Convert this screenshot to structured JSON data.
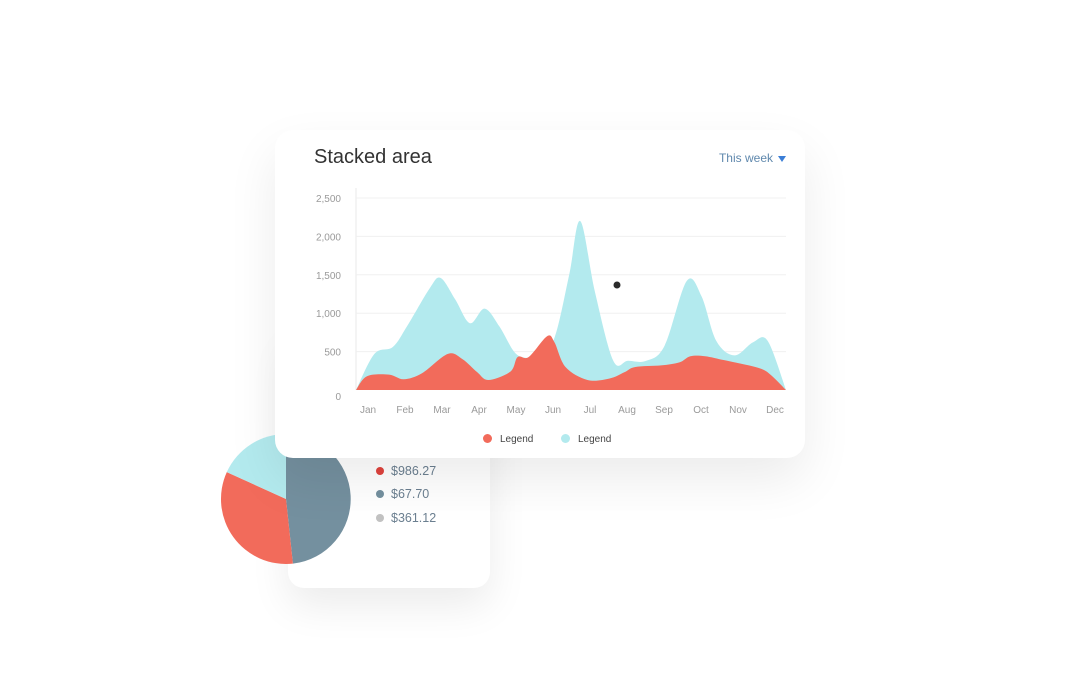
{
  "chart_data": [
    {
      "type": "area",
      "title": "Stacked area",
      "period": "This week",
      "categories": [
        "Jan",
        "Feb",
        "Mar",
        "Apr",
        "May",
        "Jun",
        "Jul",
        "Aug",
        "Sep",
        "Oct",
        "Nov",
        "Dec"
      ],
      "y_ticks": [
        "2,500",
        "2,000",
        "1,500",
        "1,000",
        "500",
        "0"
      ],
      "ylim": [
        0,
        2500
      ],
      "grid": true,
      "legend_position": "bottom-center",
      "series": [
        {
          "name": "Legend",
          "color": "#f26b5b",
          "x": [
            0,
            0.3,
            0.9,
            1.3,
            1.8,
            2.5,
            2.9,
            3.3,
            3.6,
            4.2,
            4.4,
            4.7,
            5.2,
            5.4,
            5.7,
            6.3,
            6.9,
            7.3,
            7.6,
            8.3,
            8.8,
            9.1,
            9.5,
            10,
            10.4,
            11,
            11.3,
            11.7
          ],
          "values": [
            0,
            180,
            200,
            140,
            220,
            470,
            400,
            230,
            130,
            240,
            430,
            430,
            700,
            620,
            300,
            130,
            150,
            230,
            300,
            320,
            360,
            440,
            440,
            390,
            350,
            280,
            190,
            0
          ]
        },
        {
          "name": "Legend",
          "color": "#b3eaee",
          "x": [
            0,
            0.5,
            1,
            1.4,
            2,
            2.3,
            2.7,
            3.1,
            3.5,
            3.9,
            4.3,
            4.6,
            5,
            5.4,
            5.8,
            6.1,
            6.5,
            7,
            7.4,
            7.9,
            8.4,
            9,
            9.4,
            9.8,
            10.3,
            10.8,
            11.2,
            11.7
          ],
          "values": [
            0,
            470,
            560,
            840,
            1320,
            1460,
            1180,
            870,
            1060,
            830,
            500,
            420,
            450,
            680,
            1500,
            2200,
            1280,
            380,
            380,
            380,
            580,
            1420,
            1220,
            640,
            450,
            620,
            640,
            0
          ]
        }
      ]
    },
    {
      "type": "pie",
      "slices": [
        {
          "color": "#74909f",
          "value": 48.3
        },
        {
          "color": "#f26b5b",
          "value": 33.5
        },
        {
          "color": "#b3eaee",
          "value": 18.2
        }
      ],
      "items": [
        {
          "label": "$986.27",
          "color": "#e0433d"
        },
        {
          "label": "$67.70",
          "color": "#74909f"
        },
        {
          "label": "$361.12",
          "color": "#c2c2c2"
        }
      ]
    }
  ]
}
